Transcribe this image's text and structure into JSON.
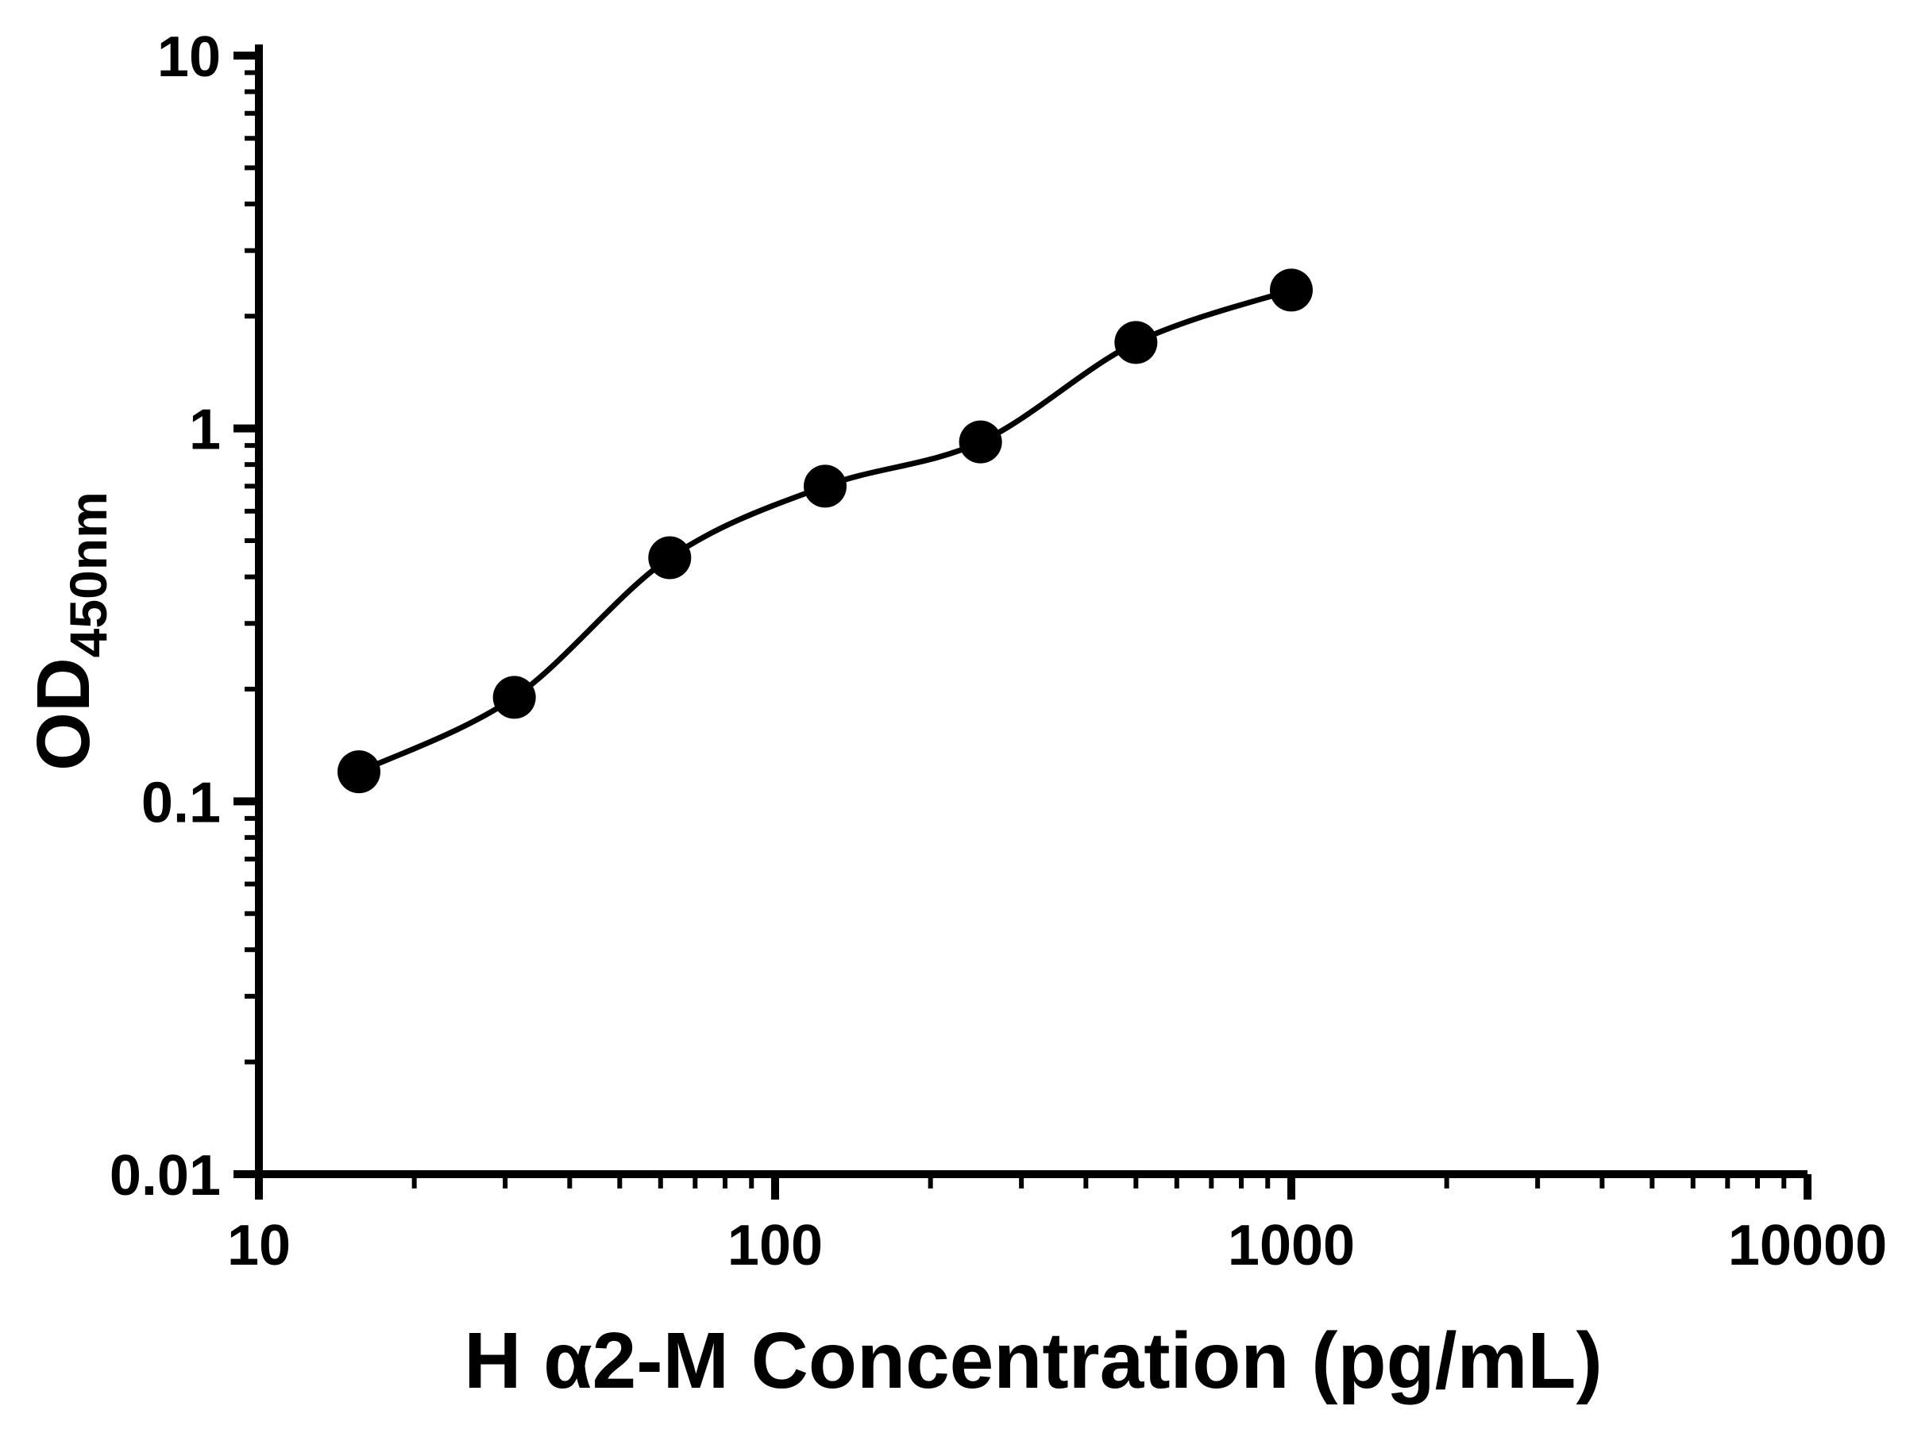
{
  "chart": {
    "x_axis": {
      "label": "H α2-M Concentration (pg/mL)",
      "scale": "log",
      "min": 10,
      "max": 10000,
      "major_ticks": [
        10,
        100,
        1000,
        10000
      ],
      "tick_labels": [
        "10",
        "100",
        "1000",
        "10000"
      ]
    },
    "y_axis": {
      "label_main": "OD",
      "label_sub": "450nm",
      "scale": "log",
      "min": 0.01,
      "max": 10,
      "major_ticks": [
        0.01,
        0.1,
        1,
        10
      ],
      "tick_labels": [
        "0.01",
        "0.1",
        "1",
        "10"
      ]
    },
    "colors": {
      "axis": "#000000",
      "marker": "#000000",
      "curve": "#000000",
      "background": "#ffffff"
    }
  },
  "chart_data": {
    "type": "scatter",
    "title": "",
    "xlabel": "H α2-M Concentration (pg/mL)",
    "ylabel": "OD450nm",
    "xscale": "log",
    "yscale": "log",
    "xlim": [
      10,
      10000
    ],
    "ylim": [
      0.01,
      10
    ],
    "x_ticks": [
      10,
      100,
      1000,
      10000
    ],
    "y_ticks": [
      0.01,
      0.1,
      1,
      10
    ],
    "x": [
      15.625,
      31.25,
      62.5,
      125,
      250,
      500,
      1000
    ],
    "y": [
      0.12,
      0.19,
      0.45,
      0.7,
      0.92,
      1.7,
      2.35
    ],
    "fit_curve": true,
    "marker": "filled-circle",
    "marker_color": "#000000",
    "line_color": "#000000",
    "legend": false,
    "grid": false
  }
}
